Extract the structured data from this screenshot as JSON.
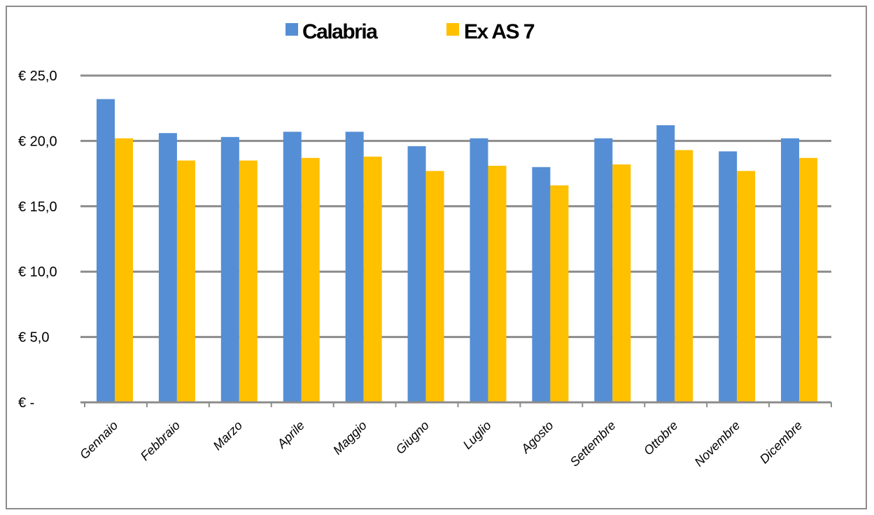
{
  "chart_data": {
    "type": "bar",
    "title": "",
    "xlabel": "",
    "ylabel": "",
    "categories": [
      "Gennaio",
      "Febbraio",
      "Marzo",
      "Aprile",
      "Maggio",
      "Giugno",
      "Luglio",
      "Agosto",
      "Settembre",
      "Ottobre",
      "Novembre",
      "Dicembre"
    ],
    "series": [
      {
        "name": "Calabria",
        "color": "#558ed5",
        "values": [
          23.2,
          20.6,
          20.3,
          20.7,
          20.7,
          19.6,
          20.2,
          18.0,
          20.2,
          21.2,
          19.2,
          20.2
        ]
      },
      {
        "name": "Ex AS 7",
        "color": "#ffc000",
        "values": [
          20.2,
          18.5,
          18.5,
          18.7,
          18.8,
          17.7,
          18.1,
          16.6,
          18.2,
          19.3,
          17.7,
          18.7
        ]
      }
    ],
    "ylim": [
      0,
      25
    ],
    "yticks": [
      0,
      5,
      10,
      15,
      20,
      25
    ],
    "ytick_labels": [
      "€ -",
      "€ 5,0",
      "€ 10,0",
      "€ 15,0",
      "€ 20,0",
      "€ 25,0"
    ],
    "grid": true,
    "gridline_color": "#8c8c8c",
    "legend_position": "top"
  }
}
